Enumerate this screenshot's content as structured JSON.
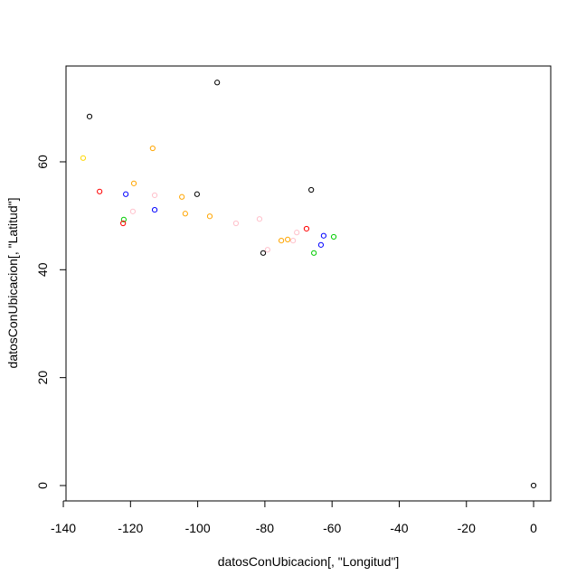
{
  "chart_data": {
    "type": "scatter",
    "xlabel": "datosConUbicacion[, \"Longitud\"]",
    "ylabel": "datosConUbicacion[, \"Latitud\"]",
    "x": [
      -132.2,
      -94.2,
      -134.1,
      -113.4,
      -129.2,
      -119.0,
      -121.4,
      -112.8,
      -104.7,
      -100.2,
      -112.8,
      -119.3,
      -103.7,
      -96.4,
      -122.0,
      -122.2,
      -88.6,
      -81.6,
      -66.2,
      -67.6,
      -70.5,
      -75.1,
      -73.2,
      -71.6,
      -62.5,
      -59.5,
      -63.3,
      -79.2,
      -80.5,
      -65.4,
      0
    ],
    "y": [
      68.4,
      74.7,
      60.7,
      62.5,
      54.5,
      56.0,
      54.0,
      53.8,
      53.5,
      54.0,
      51.1,
      50.8,
      50.4,
      49.9,
      49.3,
      48.6,
      48.6,
      49.4,
      54.8,
      47.6,
      46.9,
      45.4,
      45.6,
      45.4,
      46.3,
      46.1,
      44.6,
      43.7,
      43.1,
      43.1,
      0
    ],
    "colors": [
      "black",
      "black",
      "gold",
      "orange",
      "red",
      "orange",
      "blue",
      "pink",
      "orange",
      "black",
      "blue",
      "pink",
      "orange",
      "orange",
      "#00cc00",
      "red",
      "pink",
      "pink",
      "black",
      "red",
      "pink",
      "orange",
      "orange",
      "pink",
      "blue",
      "#00cc00",
      "blue",
      "pink",
      "black",
      "#00cc00",
      "black"
    ],
    "xlim": [
      -139.2,
      5.1
    ],
    "ylim": [
      -2.85,
      77.76
    ],
    "xticks": [
      -140,
      -120,
      -100,
      -80,
      -60,
      -40,
      -20,
      0
    ],
    "yticks": [
      0,
      20,
      40,
      60
    ]
  }
}
